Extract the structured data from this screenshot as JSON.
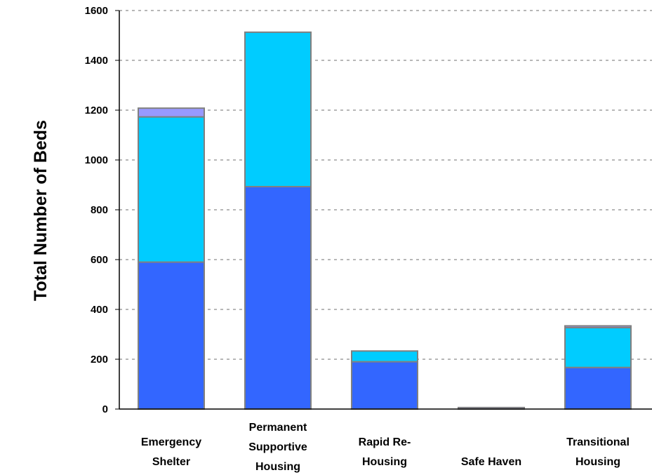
{
  "chart_data": {
    "type": "bar",
    "stacked": true,
    "title": "",
    "xlabel": "",
    "ylabel": "Total Number of Beds",
    "ylim": [
      0,
      1600
    ],
    "yticks": [
      0,
      200,
      400,
      600,
      800,
      1000,
      1200,
      1400,
      1600
    ],
    "grid": true,
    "legend": "none",
    "categories": [
      [
        "Emergency",
        "Shelter"
      ],
      [
        "Permanent",
        "Supportive",
        "Housing"
      ],
      [
        "Rapid Re-",
        "Housing"
      ],
      [
        "Safe Haven"
      ],
      [
        "Transitional",
        "Housing"
      ]
    ],
    "series": [
      {
        "color": "#3366ff",
        "values": [
          590,
          893,
          190,
          0,
          167
        ]
      },
      {
        "color": "#00ccff",
        "values": [
          583,
          620,
          43,
          0,
          160
        ]
      },
      {
        "color": "#9999ff",
        "values": [
          35,
          0,
          0,
          6,
          7
        ]
      }
    ]
  }
}
